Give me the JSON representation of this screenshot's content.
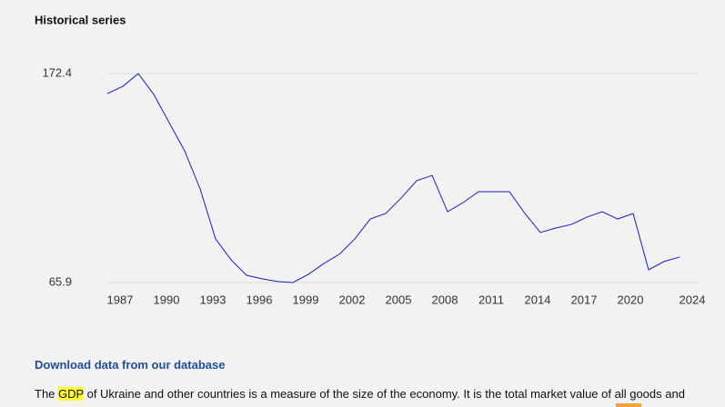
{
  "chart_data": {
    "type": "line",
    "title": "Historical series",
    "x": [
      1986,
      1987,
      1988,
      1989,
      1990,
      1991,
      1992,
      1993,
      1994,
      1995,
      1996,
      1997,
      1998,
      1999,
      2000,
      2001,
      2002,
      2003,
      2004,
      2005,
      2006,
      2007,
      2008,
      2009,
      2010,
      2011,
      2012,
      2013,
      2014,
      2015,
      2016,
      2017,
      2018,
      2019,
      2020,
      2021,
      2022,
      2023
    ],
    "series": [
      {
        "name": "GDP",
        "color": "#1a1acc",
        "values": [
          162.2,
          165.9,
          172.4,
          161.8,
          147.4,
          133.0,
          113.6,
          88.1,
          77.5,
          69.6,
          67.8,
          66.4,
          65.9,
          70.1,
          75.6,
          80.3,
          88.1,
          98.3,
          101.1,
          109.0,
          117.8,
          120.5,
          102.0,
          106.6,
          112.2,
          112.2,
          112.2,
          101.1,
          91.4,
          93.7,
          95.5,
          99.2,
          102.0,
          98.3,
          101.1,
          72.4,
          76.6,
          78.9
        ]
      }
    ],
    "xlim": [
      1986,
      2024
    ],
    "xticks": [
      1987,
      1990,
      1993,
      1996,
      1999,
      2002,
      2005,
      2008,
      2011,
      2014,
      2017,
      2020,
      2024
    ],
    "ylim": [
      65.9,
      172.4
    ],
    "yticks": [
      65.9,
      172.4
    ],
    "grid": true
  },
  "download_link": "Download data from our database",
  "paragraph": {
    "before": "The",
    "highlight": "GDP",
    "after": "of Ukraine and other countries is a measure of the size of the economy. It is the total market value of all goods and"
  }
}
